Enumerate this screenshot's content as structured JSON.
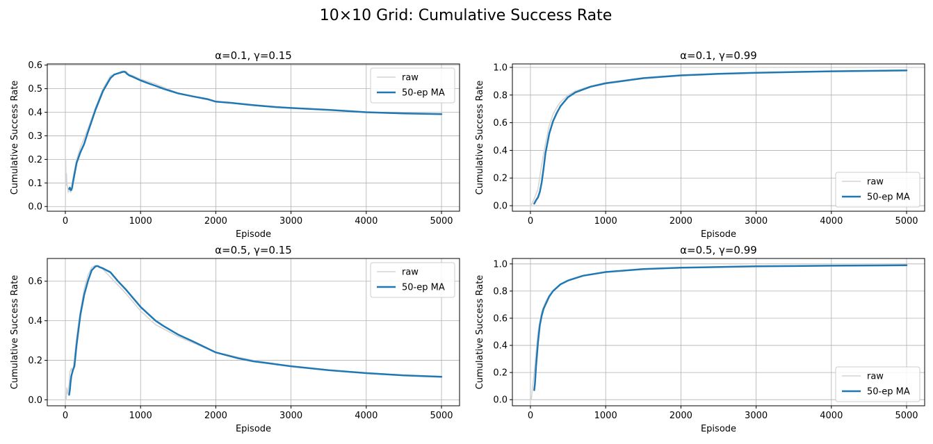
{
  "figure": {
    "suptitle": "10×10 Grid: Cumulative Success Rate"
  },
  "colors": {
    "raw": "#d3d3d3",
    "ma": "#1f77b4",
    "grid": "#b0b0b0"
  },
  "chart_data": [
    {
      "type": "line",
      "title": "α=0.1, γ=0.15",
      "xlabel": "Episode",
      "ylabel": "Cumulative Success Rate",
      "xlim": [
        -240,
        5240
      ],
      "ylim": [
        -0.02,
        0.605
      ],
      "xticks": [
        0,
        1000,
        2000,
        3000,
        4000,
        5000
      ],
      "yticks": [
        0.0,
        0.1,
        0.2,
        0.3,
        0.4,
        0.5,
        0.6
      ],
      "ytick_labels": [
        "0.0",
        "0.1",
        "0.2",
        "0.3",
        "0.4",
        "0.5",
        "0.6"
      ],
      "grid": true,
      "legend": "upper right",
      "series": [
        {
          "name": "raw",
          "x": [
            1,
            5,
            10,
            15,
            20,
            30,
            40,
            50,
            60,
            70,
            80,
            100,
            150,
            200,
            300,
            400,
            500,
            600,
            700,
            750,
            800,
            850,
            900,
            1000,
            1200,
            1500,
            2000,
            2500,
            3000,
            3500,
            4000,
            4500,
            5000
          ],
          "y": [
            0.0,
            0.2,
            0.09,
            0.14,
            0.1,
            0.08,
            0.06,
            0.08,
            0.07,
            0.06,
            0.07,
            0.12,
            0.2,
            0.25,
            0.33,
            0.42,
            0.5,
            0.555,
            0.565,
            0.575,
            0.575,
            0.56,
            0.555,
            0.54,
            0.52,
            0.48,
            0.445,
            0.432,
            0.418,
            0.41,
            0.4,
            0.395,
            0.392
          ]
        },
        {
          "name": "50-ep MA",
          "x": [
            50,
            60,
            70,
            80,
            90,
            100,
            150,
            200,
            250,
            300,
            400,
            500,
            600,
            650,
            700,
            750,
            780,
            800,
            820,
            850,
            900,
            1000,
            1100,
            1200,
            1300,
            1400,
            1500,
            1700,
            1900,
            2000,
            2200,
            2500,
            2800,
            3000,
            3500,
            4000,
            4500,
            5000
          ],
          "y": [
            0.075,
            0.08,
            0.07,
            0.07,
            0.08,
            0.1,
            0.185,
            0.23,
            0.265,
            0.315,
            0.41,
            0.49,
            0.545,
            0.56,
            0.565,
            0.57,
            0.572,
            0.57,
            0.563,
            0.556,
            0.55,
            0.535,
            0.523,
            0.512,
            0.5,
            0.49,
            0.48,
            0.467,
            0.455,
            0.445,
            0.44,
            0.43,
            0.422,
            0.418,
            0.41,
            0.4,
            0.395,
            0.392
          ]
        }
      ]
    },
    {
      "type": "line",
      "title": "α=0.1, γ=0.99",
      "xlabel": "Episode",
      "ylabel": "Cumulative Success Rate",
      "xlim": [
        -240,
        5240
      ],
      "ylim": [
        -0.04,
        1.025
      ],
      "xticks": [
        0,
        1000,
        2000,
        3000,
        4000,
        5000
      ],
      "yticks": [
        0.0,
        0.2,
        0.4,
        0.6,
        0.8,
        1.0
      ],
      "ytick_labels": [
        "0.0",
        "0.2",
        "0.4",
        "0.6",
        "0.8",
        "1.0"
      ],
      "grid": true,
      "legend": "lower right",
      "series": [
        {
          "name": "raw",
          "x": [
            1,
            25,
            50,
            100,
            150,
            200,
            250,
            300,
            350,
            400,
            500,
            600,
            800,
            1000,
            1500,
            2000,
            2500,
            3000,
            4000,
            5000
          ],
          "y": [
            0.0,
            0.02,
            0.05,
            0.12,
            0.3,
            0.45,
            0.58,
            0.66,
            0.71,
            0.75,
            0.8,
            0.83,
            0.865,
            0.89,
            0.925,
            0.945,
            0.955,
            0.962,
            0.972,
            0.978
          ]
        },
        {
          "name": "50-ep MA",
          "x": [
            50,
            75,
            100,
            125,
            150,
            175,
            200,
            250,
            300,
            350,
            400,
            500,
            600,
            800,
            1000,
            1500,
            2000,
            2500,
            3000,
            4000,
            5000
          ],
          "y": [
            0.015,
            0.04,
            0.06,
            0.1,
            0.17,
            0.27,
            0.38,
            0.52,
            0.61,
            0.67,
            0.72,
            0.785,
            0.82,
            0.86,
            0.885,
            0.922,
            0.942,
            0.953,
            0.961,
            0.972,
            0.978
          ]
        }
      ]
    },
    {
      "type": "line",
      "title": "α=0.5, γ=0.15",
      "xlabel": "Episode",
      "ylabel": "Cumulative Success Rate",
      "xlim": [
        -240,
        5240
      ],
      "ylim": [
        -0.03,
        0.715
      ],
      "xticks": [
        0,
        1000,
        2000,
        3000,
        4000,
        5000
      ],
      "yticks": [
        0.0,
        0.2,
        0.4,
        0.6
      ],
      "ytick_labels": [
        "0.0",
        "0.2",
        "0.4",
        "0.6"
      ],
      "grid": true,
      "legend": "upper right",
      "series": [
        {
          "name": "raw",
          "x": [
            1,
            10,
            20,
            30,
            40,
            50,
            60,
            80,
            100,
            120,
            150,
            200,
            250,
            300,
            350,
            400,
            450,
            500,
            600,
            800,
            1000,
            1200,
            1500,
            2000,
            2500,
            3000,
            3500,
            4000,
            4500,
            5000
          ],
          "y": [
            0.0,
            0.0,
            0.06,
            0.03,
            0.05,
            0.08,
            0.14,
            0.16,
            0.14,
            0.21,
            0.32,
            0.45,
            0.56,
            0.63,
            0.67,
            0.68,
            0.675,
            0.66,
            0.62,
            0.54,
            0.45,
            0.38,
            0.32,
            0.24,
            0.2,
            0.17,
            0.15,
            0.137,
            0.125,
            0.118
          ]
        },
        {
          "name": "50-ep MA",
          "x": [
            50,
            60,
            70,
            80,
            100,
            120,
            150,
            200,
            250,
            300,
            350,
            400,
            430,
            450,
            500,
            550,
            600,
            700,
            800,
            900,
            1000,
            1100,
            1200,
            1300,
            1500,
            1700,
            2000,
            2300,
            2500,
            2800,
            3000,
            3500,
            4000,
            4500,
            5000
          ],
          "y": [
            0.025,
            0.05,
            0.09,
            0.12,
            0.15,
            0.17,
            0.28,
            0.43,
            0.53,
            0.6,
            0.655,
            0.675,
            0.677,
            0.672,
            0.665,
            0.655,
            0.645,
            0.6,
            0.56,
            0.515,
            0.47,
            0.435,
            0.4,
            0.375,
            0.33,
            0.295,
            0.24,
            0.21,
            0.195,
            0.18,
            0.17,
            0.15,
            0.135,
            0.124,
            0.117
          ]
        }
      ]
    },
    {
      "type": "line",
      "title": "α=0.5, γ=0.99",
      "xlabel": "Episode",
      "ylabel": "Cumulative Success Rate",
      "xlim": [
        -240,
        5240
      ],
      "ylim": [
        -0.045,
        1.04
      ],
      "xticks": [
        0,
        1000,
        2000,
        3000,
        4000,
        5000
      ],
      "yticks": [
        0.0,
        0.2,
        0.4,
        0.6,
        0.8,
        1.0
      ],
      "ytick_labels": [
        "0.0",
        "0.2",
        "0.4",
        "0.6",
        "0.8",
        "1.0"
      ],
      "grid": true,
      "legend": "lower right",
      "series": [
        {
          "name": "raw",
          "x": [
            1,
            10,
            20,
            30,
            50,
            75,
            100,
            150,
            200,
            250,
            300,
            400,
            500,
            700,
            1000,
            1500,
            2000,
            3000,
            4000,
            5000
          ],
          "y": [
            0.0,
            0.0,
            0.05,
            0.1,
            0.2,
            0.35,
            0.5,
            0.65,
            0.72,
            0.77,
            0.8,
            0.85,
            0.88,
            0.915,
            0.94,
            0.962,
            0.972,
            0.982,
            0.987,
            0.99
          ]
        },
        {
          "name": "50-ep MA",
          "x": [
            50,
            60,
            75,
            100,
            125,
            150,
            175,
            200,
            250,
            300,
            400,
            500,
            700,
            1000,
            1500,
            2000,
            3000,
            4000,
            5000
          ],
          "y": [
            0.07,
            0.12,
            0.25,
            0.42,
            0.55,
            0.62,
            0.67,
            0.7,
            0.76,
            0.8,
            0.85,
            0.878,
            0.913,
            0.94,
            0.962,
            0.972,
            0.982,
            0.987,
            0.99
          ]
        }
      ]
    }
  ]
}
